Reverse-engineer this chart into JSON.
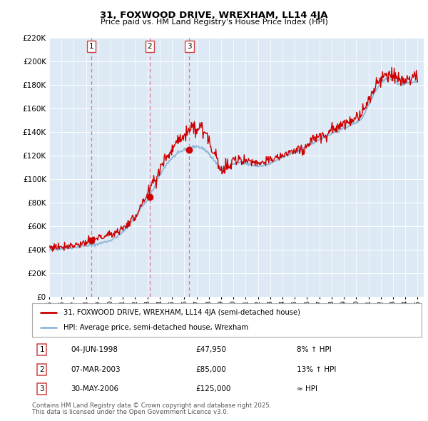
{
  "title1": "31, FOXWOOD DRIVE, WREXHAM, LL14 4JA",
  "title2": "Price paid vs. HM Land Registry's House Price Index (HPI)",
  "legend_line1": "31, FOXWOOD DRIVE, WREXHAM, LL14 4JA (semi-detached house)",
  "legend_line2": "HPI: Average price, semi-detached house, Wrexham",
  "footer1": "Contains HM Land Registry data © Crown copyright and database right 2025.",
  "footer2": "This data is licensed under the Open Government Licence v3.0.",
  "sales": [
    {
      "num": 1,
      "date_label": "04-JUN-1998",
      "price": 47950,
      "note": "8% ↑ HPI",
      "x": 1998.42
    },
    {
      "num": 2,
      "date_label": "07-MAR-2003",
      "price": 85000,
      "note": "13% ↑ HPI",
      "x": 2003.18
    },
    {
      "num": 3,
      "date_label": "30-MAY-2006",
      "price": 125000,
      "note": "≈ HPI",
      "x": 2006.41
    }
  ],
  "ylim": [
    0,
    220000
  ],
  "yticks": [
    0,
    20000,
    40000,
    60000,
    80000,
    100000,
    120000,
    140000,
    160000,
    180000,
    200000,
    220000
  ],
  "xlim": [
    1995,
    2025.5
  ],
  "bg_color": "#ddeaf5",
  "grid_color": "#ffffff",
  "hpi_color": "#90b8d8",
  "price_color": "#cc0000",
  "vline_color": "#cc0000"
}
